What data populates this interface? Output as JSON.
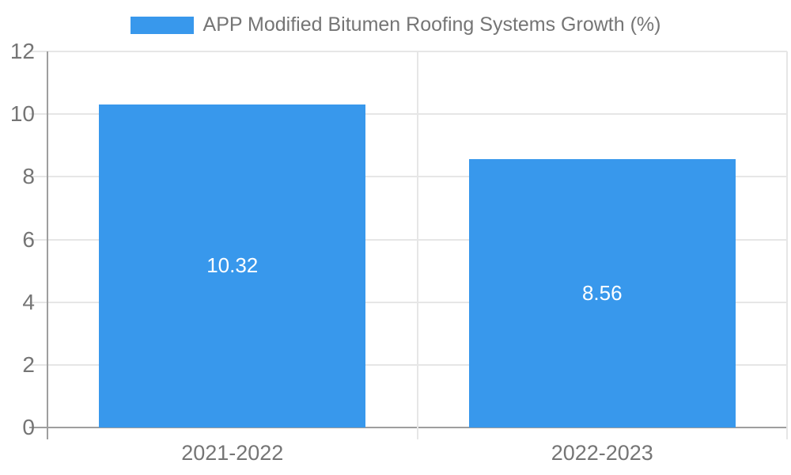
{
  "chart_data": {
    "type": "bar",
    "title": "",
    "legend": {
      "label": "APP Modified Bitumen Roofing Systems Growth (%)",
      "position": "top"
    },
    "categories": [
      "2021-2022",
      "2022-2023"
    ],
    "values": [
      10.32,
      8.56
    ],
    "value_labels": [
      "10.32",
      "8.56"
    ],
    "xlabel": "",
    "ylabel": "",
    "ylim": [
      0,
      12
    ],
    "yticks": [
      0,
      2,
      4,
      6,
      8,
      10,
      12
    ],
    "ytick_labels": [
      "0",
      "2",
      "4",
      "6",
      "8",
      "10",
      "12"
    ],
    "grid": true,
    "colors": {
      "bar": "#3898EC",
      "value_label": "#FFFFFF",
      "text": "#757575",
      "axis": "#9E9E9E",
      "grid": "#E6E6E6",
      "background": "#FFFFFF"
    }
  }
}
